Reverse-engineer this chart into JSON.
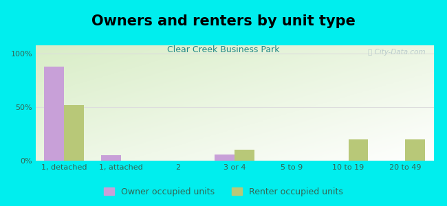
{
  "title": "Owners and renters by unit type",
  "subtitle": "Clear Creek Business Park",
  "categories": [
    "1, detached",
    "1, attached",
    "2",
    "3 or 4",
    "5 to 9",
    "10 to 19",
    "20 to 49"
  ],
  "owner_values": [
    88,
    5,
    0,
    6,
    0,
    0,
    0
  ],
  "renter_values": [
    52,
    0,
    0,
    10,
    0,
    20,
    20
  ],
  "owner_color": "#c8a0d8",
  "renter_color": "#b8c878",
  "background_color": "#00eeee",
  "plot_bg_color": "#eef5e8",
  "yticks": [
    0,
    50,
    100
  ],
  "ylim": [
    0,
    108
  ],
  "bar_width": 0.35,
  "title_fontsize": 15,
  "subtitle_fontsize": 9,
  "tick_fontsize": 8,
  "legend_fontsize": 9,
  "tick_color": "#336655",
  "subtitle_color": "#228888",
  "watermark_color": "#bbcccc",
  "grid_color": "#dddddd"
}
